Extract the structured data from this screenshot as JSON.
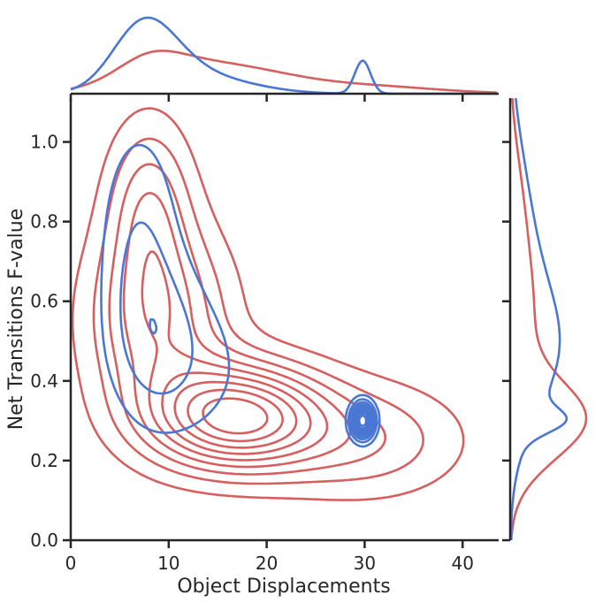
{
  "chart_data": {
    "type": "kde-joint",
    "xlabel": "Object Displacements",
    "ylabel": "Net Transitions F-value",
    "xlim": [
      0,
      43.5
    ],
    "ylim": [
      0,
      1.11
    ],
    "x_ticks": [
      0,
      10,
      20,
      30,
      40
    ],
    "x_tick_labels": [
      "0",
      "10",
      "20",
      "30",
      "40"
    ],
    "y_ticks": [
      0.0,
      0.2,
      0.4,
      0.6,
      0.8,
      1.0
    ],
    "y_tick_labels": [
      "0.0",
      "0.2",
      "0.4",
      "0.6",
      "0.8",
      "1.0"
    ],
    "grid": false,
    "series": [
      {
        "color": "#4a77d4",
        "contour_levels": [
          0.1,
          0.2,
          0.3,
          0.4,
          0.5,
          0.6,
          0.7,
          0.8,
          0.9
        ],
        "components": [
          {
            "w": 0.4,
            "mx": 7.0,
            "my": 0.75,
            "sx": 3.0,
            "sy": 0.22
          },
          {
            "w": 0.3,
            "mx": 9.0,
            "my": 0.5,
            "sx": 3.5,
            "sy": 0.15
          },
          {
            "w": 0.22,
            "mx": 14.0,
            "my": 0.42,
            "sx": 5.0,
            "sy": 0.15
          },
          {
            "w": 0.08,
            "mx": 29.8,
            "my": 0.3,
            "sx": 0.8,
            "sy": 0.03
          }
        ],
        "marginal_x_peak": 8.5,
        "marginal_y_peak": 0.45
      },
      {
        "color": "#d65f5f",
        "contour_levels": [
          0.1,
          0.2,
          0.3,
          0.4,
          0.5,
          0.6,
          0.7,
          0.8,
          0.9
        ],
        "components": [
          {
            "w": 0.4,
            "mx": 17.0,
            "my": 0.31,
            "sx": 6.0,
            "sy": 0.09
          },
          {
            "w": 0.32,
            "mx": 9.0,
            "my": 0.55,
            "sx": 5.0,
            "sy": 0.17
          },
          {
            "w": 0.16,
            "mx": 30.0,
            "my": 0.25,
            "sx": 7.0,
            "sy": 0.1
          },
          {
            "w": 0.12,
            "mx": 8.0,
            "my": 0.85,
            "sx": 3.0,
            "sy": 0.15
          }
        ],
        "marginal_x_peak": 10.0,
        "marginal_y_peak": 0.3
      }
    ]
  }
}
